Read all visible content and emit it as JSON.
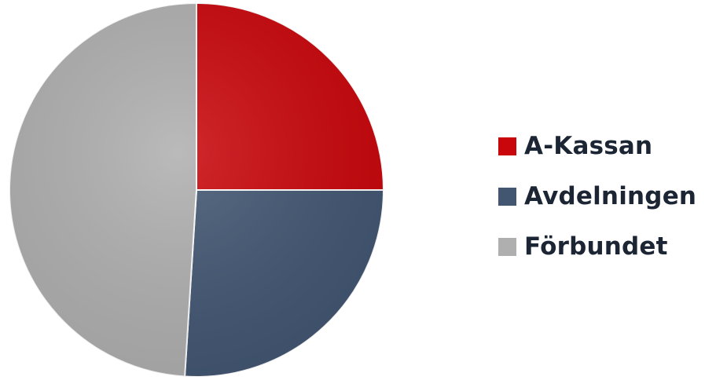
{
  "chart_data": {
    "type": "pie",
    "start": "12 o'clock",
    "direction": "clockwise",
    "legend_position": "right",
    "slices": [
      {
        "label": "A-Kassan",
        "value": 25,
        "color": "#c9060b"
      },
      {
        "label": "Avdelningen",
        "value": 26,
        "color": "#425672"
      },
      {
        "label": "Förbundet",
        "value": 49,
        "color": "#afafaf"
      }
    ]
  }
}
